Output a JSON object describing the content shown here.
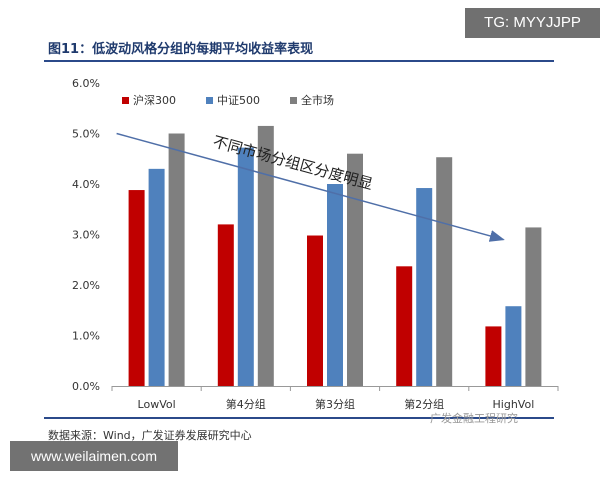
{
  "header": {
    "title": "图11：低波动风格分组的每期平均收益率表现"
  },
  "footer": {
    "source": "数据来源：Wind，广发证券发展研究中心"
  },
  "watermarks": {
    "top": "TG: MYYJJPP",
    "bottom": "www.weilaimen.com",
    "logo": "广发金融工程研究"
  },
  "chart_data": {
    "type": "bar",
    "title": "",
    "xlabel": "",
    "ylabel": "",
    "categories": [
      "LowVol",
      "第4分组",
      "第3分组",
      "第2分组",
      "HighVol"
    ],
    "series": [
      {
        "name": "沪深300",
        "color": "#c00000",
        "values": [
          3.88,
          3.2,
          2.98,
          2.37,
          1.18
        ]
      },
      {
        "name": "中证500",
        "color": "#4f81bd",
        "values": [
          4.3,
          4.72,
          4.0,
          3.92,
          1.58
        ]
      },
      {
        "name": "全市场",
        "color": "#7f7f7f",
        "values": [
          5.0,
          5.15,
          4.6,
          4.53,
          3.14
        ]
      }
    ],
    "ylim": [
      0,
      6
    ],
    "yticks": [
      "0.0%",
      "1.0%",
      "2.0%",
      "3.0%",
      "4.0%",
      "5.0%",
      "6.0%"
    ],
    "grid": false,
    "legend": "top-left",
    "annotation": {
      "text": "不同市场分组区分度明显",
      "arrow_from": [
        "LowVol",
        5.0
      ],
      "arrow_to": [
        "HighVol",
        2.9
      ]
    }
  }
}
